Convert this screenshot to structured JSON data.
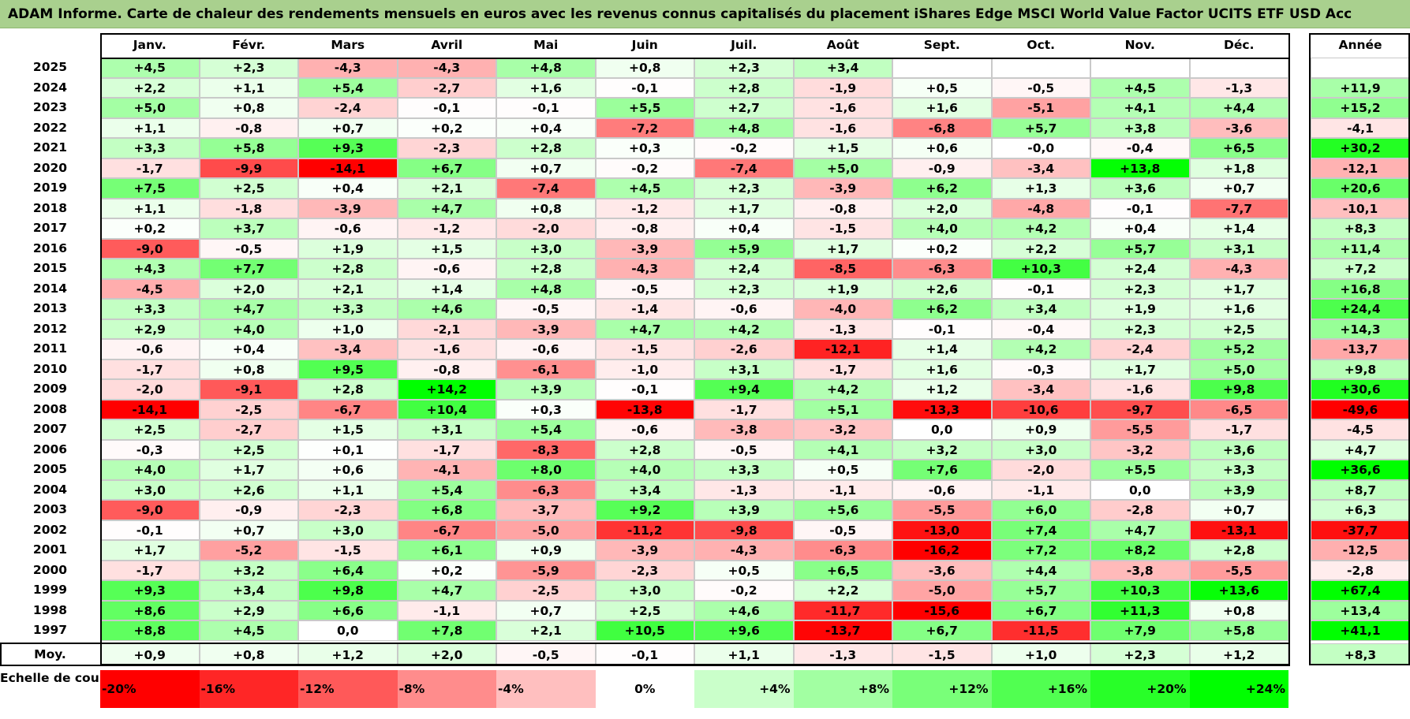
{
  "title": "ADAM Informe. Carte de chaleur des rendements mensuels en euros avec les revenus connus capitalisés du placement iShares Edge MSCI World Value Factor UCITS ETF USD Acc",
  "chart_data": {
    "type": "heatmap",
    "columns": [
      "Janv.",
      "Févr.",
      "Mars",
      "Avril",
      "Mai",
      "Juin",
      "Juil.",
      "Août",
      "Sept.",
      "Oct.",
      "Nov.",
      "Déc."
    ],
    "year_column_label": "Année",
    "rows": [
      {
        "year": "2025",
        "values": [
          4.5,
          2.3,
          -4.3,
          -4.3,
          4.8,
          0.8,
          2.3,
          3.4,
          null,
          null,
          null,
          null
        ],
        "annual": null
      },
      {
        "year": "2024",
        "values": [
          2.2,
          1.1,
          5.4,
          -2.7,
          1.6,
          -0.1,
          2.8,
          -1.9,
          0.5,
          -0.5,
          4.5,
          -1.3
        ],
        "annual": 11.9
      },
      {
        "year": "2023",
        "values": [
          5.0,
          0.8,
          -2.4,
          -0.1,
          -0.1,
          5.5,
          2.7,
          -1.6,
          1.6,
          -5.1,
          4.1,
          4.4
        ],
        "annual": 15.2
      },
      {
        "year": "2022",
        "values": [
          1.1,
          -0.8,
          0.7,
          0.2,
          0.4,
          -7.2,
          4.8,
          -1.6,
          -6.8,
          5.7,
          3.8,
          -3.6
        ],
        "annual": -4.1
      },
      {
        "year": "2021",
        "values": [
          3.3,
          5.8,
          9.3,
          -2.3,
          2.8,
          0.3,
          -0.2,
          1.5,
          0.6,
          -0.0,
          -0.4,
          6.5
        ],
        "annual": 30.2
      },
      {
        "year": "2020",
        "values": [
          -1.7,
          -9.9,
          -14.1,
          6.7,
          0.7,
          -0.2,
          -7.4,
          5.0,
          -0.9,
          -3.4,
          13.8,
          1.8
        ],
        "annual": -12.1
      },
      {
        "year": "2019",
        "values": [
          7.5,
          2.5,
          0.4,
          2.1,
          -7.4,
          4.5,
          2.3,
          -3.9,
          6.2,
          1.3,
          3.6,
          0.7
        ],
        "annual": 20.6
      },
      {
        "year": "2018",
        "values": [
          1.1,
          -1.8,
          -3.9,
          4.7,
          0.8,
          -1.2,
          1.7,
          -0.8,
          2.0,
          -4.8,
          -0.1,
          -7.7
        ],
        "annual": -10.1
      },
      {
        "year": "2017",
        "values": [
          0.2,
          3.7,
          -0.6,
          -1.2,
          -2.0,
          -0.8,
          0.4,
          -1.5,
          4.0,
          4.2,
          0.4,
          1.4
        ],
        "annual": 8.3
      },
      {
        "year": "2016",
        "values": [
          -9.0,
          -0.5,
          1.9,
          1.5,
          3.0,
          -3.9,
          5.9,
          1.7,
          0.2,
          2.2,
          5.7,
          3.1
        ],
        "annual": 11.4
      },
      {
        "year": "2015",
        "values": [
          4.3,
          7.7,
          2.8,
          -0.6,
          2.8,
          -4.3,
          2.4,
          -8.5,
          -6.3,
          10.3,
          2.4,
          -4.3
        ],
        "annual": 7.2
      },
      {
        "year": "2014",
        "values": [
          -4.5,
          2.0,
          2.1,
          1.4,
          4.8,
          -0.5,
          2.3,
          1.9,
          2.6,
          -0.1,
          2.3,
          1.7
        ],
        "annual": 16.8
      },
      {
        "year": "2013",
        "values": [
          3.3,
          4.7,
          3.3,
          4.6,
          -0.5,
          -1.4,
          -0.6,
          -4.0,
          6.2,
          3.4,
          1.9,
          1.6
        ],
        "annual": 24.4
      },
      {
        "year": "2012",
        "values": [
          2.9,
          4.0,
          1.0,
          -2.1,
          -3.9,
          4.7,
          4.2,
          -1.3,
          -0.1,
          -0.4,
          2.3,
          2.5
        ],
        "annual": 14.3
      },
      {
        "year": "2011",
        "values": [
          -0.6,
          0.4,
          -3.4,
          -1.6,
          -0.6,
          -1.5,
          -2.6,
          -12.1,
          1.4,
          4.2,
          -2.4,
          5.2
        ],
        "annual": -13.7
      },
      {
        "year": "2010",
        "values": [
          -1.7,
          0.8,
          9.5,
          -0.8,
          -6.1,
          -1.0,
          3.1,
          -1.7,
          1.6,
          -0.3,
          1.7,
          5.0
        ],
        "annual": 9.8
      },
      {
        "year": "2009",
        "values": [
          -2.0,
          -9.1,
          2.8,
          14.2,
          3.9,
          -0.1,
          9.4,
          4.2,
          1.2,
          -3.4,
          -1.6,
          9.8
        ],
        "annual": 30.6
      },
      {
        "year": "2008",
        "values": [
          -14.1,
          -2.5,
          -6.7,
          10.4,
          0.3,
          -13.8,
          -1.7,
          5.1,
          -13.3,
          -10.6,
          -9.7,
          -6.5
        ],
        "annual": -49.6
      },
      {
        "year": "2007",
        "values": [
          2.5,
          -2.7,
          1.5,
          3.1,
          5.4,
          -0.6,
          -3.8,
          -3.2,
          0.0,
          0.9,
          -5.5,
          -1.7
        ],
        "annual": -4.5
      },
      {
        "year": "2006",
        "values": [
          -0.3,
          2.5,
          0.1,
          -1.7,
          -8.3,
          2.8,
          -0.5,
          4.1,
          3.2,
          3.0,
          -3.2,
          3.6
        ],
        "annual": 4.7
      },
      {
        "year": "2005",
        "values": [
          4.0,
          1.7,
          0.6,
          -4.1,
          8.0,
          4.0,
          3.3,
          0.5,
          7.6,
          -2.0,
          5.5,
          3.3
        ],
        "annual": 36.6
      },
      {
        "year": "2004",
        "values": [
          3.0,
          2.6,
          1.1,
          5.4,
          -6.3,
          3.4,
          -1.3,
          -1.1,
          -0.6,
          -1.1,
          0.0,
          3.9
        ],
        "annual": 8.7
      },
      {
        "year": "2003",
        "values": [
          -9.0,
          -0.9,
          -2.3,
          6.8,
          -3.7,
          9.2,
          3.9,
          5.6,
          -5.5,
          6.0,
          -2.8,
          0.7
        ],
        "annual": 6.3
      },
      {
        "year": "2002",
        "values": [
          -0.1,
          0.7,
          3.0,
          -6.7,
          -5.0,
          -11.2,
          -9.8,
          -0.5,
          -13.0,
          7.4,
          4.7,
          -13.1
        ],
        "annual": -37.7
      },
      {
        "year": "2001",
        "values": [
          1.7,
          -5.2,
          -1.5,
          6.1,
          0.9,
          -3.9,
          -4.3,
          -6.3,
          -16.2,
          7.2,
          8.2,
          2.8
        ],
        "annual": -12.5
      },
      {
        "year": "2000",
        "values": [
          -1.7,
          3.2,
          6.4,
          0.2,
          -5.9,
          -2.3,
          0.5,
          6.5,
          -3.6,
          4.4,
          -3.8,
          -5.5
        ],
        "annual": -2.8
      },
      {
        "year": "1999",
        "values": [
          9.3,
          3.4,
          9.8,
          4.7,
          -2.5,
          3.0,
          -0.2,
          2.2,
          -5.0,
          5.7,
          10.3,
          13.6
        ],
        "annual": 67.4
      },
      {
        "year": "1998",
        "values": [
          8.6,
          2.9,
          6.6,
          -1.1,
          0.7,
          2.5,
          4.6,
          -11.7,
          -15.6,
          6.7,
          11.3,
          0.8
        ],
        "annual": 13.4
      },
      {
        "year": "1997",
        "values": [
          8.8,
          4.5,
          0.0,
          7.8,
          2.1,
          10.5,
          9.6,
          -13.7,
          6.7,
          -11.5,
          7.9,
          5.8
        ],
        "annual": 41.1
      }
    ],
    "average": {
      "label": "Moy.",
      "values": [
        0.9,
        0.8,
        1.2,
        2.0,
        -0.5,
        -0.1,
        1.1,
        -1.3,
        -1.5,
        1.0,
        2.3,
        1.2
      ],
      "annual": 8.3
    },
    "color_scale": {
      "label": "Echelle de couleur",
      "stops": [
        -20,
        -16,
        -12,
        -8,
        -4,
        0,
        4,
        8,
        12,
        16,
        20,
        24
      ],
      "labels": [
        "-20%",
        "-16%",
        "-12%",
        "-8%",
        "-4%",
        "0%",
        "+4%",
        "+8%",
        "+12%",
        "+16%",
        "+20%",
        "+24%"
      ],
      "negative_color": "#ff0000",
      "positive_color": "#00ff00",
      "neutral_color": "#ffffff"
    }
  }
}
